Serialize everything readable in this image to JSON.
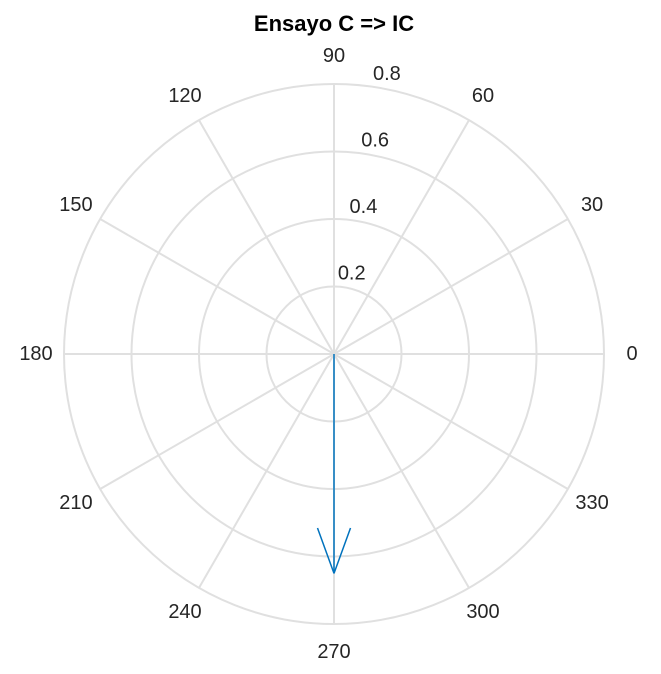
{
  "chart_data": {
    "type": "compass",
    "title": "Ensayo C => IC",
    "theta_ticks_deg": [
      0,
      30,
      60,
      90,
      120,
      150,
      180,
      210,
      240,
      270,
      300,
      330
    ],
    "theta_tick_labels": [
      "0",
      "30",
      "60",
      "90",
      "120",
      "150",
      "180",
      "210",
      "240",
      "270",
      "300",
      "330"
    ],
    "r_ticks": [
      0.2,
      0.4,
      0.6,
      0.8
    ],
    "r_tick_labels": [
      "0.2",
      "0.4",
      "0.6",
      "0.8"
    ],
    "r_lim": [
      0,
      0.8
    ],
    "r_label_angle_deg": 80,
    "grid": true,
    "series": [
      {
        "angle_deg": 270,
        "magnitude": 0.65,
        "color": "#0072BD"
      }
    ]
  },
  "colors": {
    "grid": "#e0e0e0",
    "text": "#262626",
    "vector": "#0072BD"
  }
}
